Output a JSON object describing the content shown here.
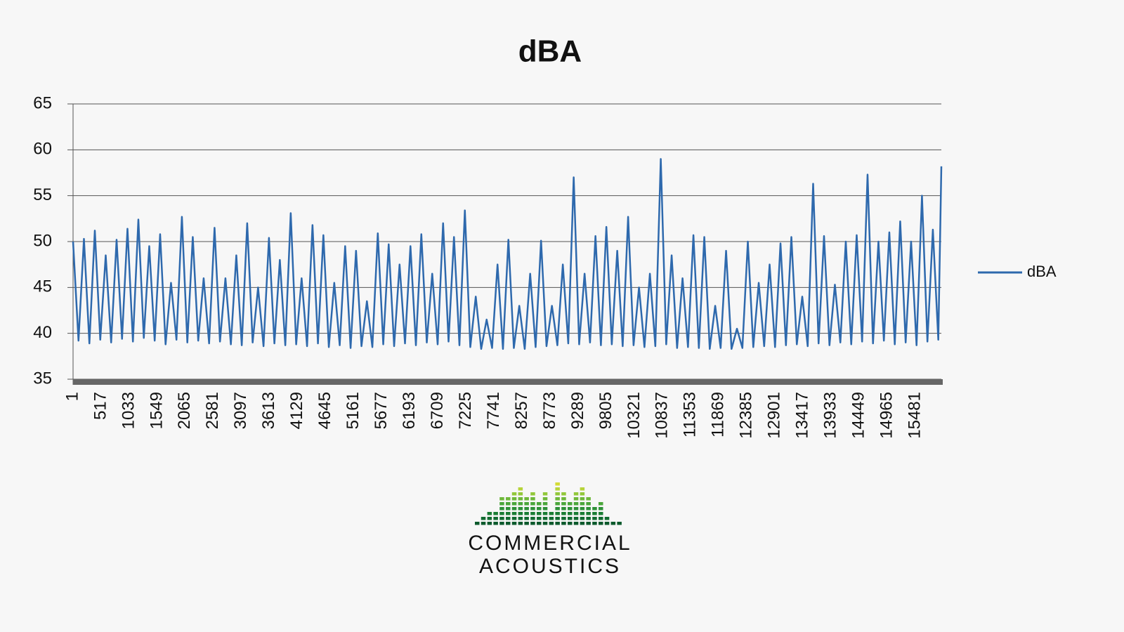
{
  "chart_data": {
    "type": "line",
    "title": "dBA",
    "x": [
      1,
      101,
      201,
      301,
      401,
      501,
      601,
      701,
      801,
      901,
      1001,
      1101,
      1201,
      1301,
      1401,
      1501,
      1601,
      1701,
      1801,
      1901,
      2001,
      2101,
      2201,
      2301,
      2401,
      2501,
      2601,
      2701,
      2801,
      2901,
      3001,
      3101,
      3201,
      3301,
      3401,
      3501,
      3601,
      3701,
      3801,
      3901,
      4001,
      4101,
      4201,
      4301,
      4401,
      4501,
      4601,
      4701,
      4801,
      4901,
      5001,
      5101,
      5201,
      5301,
      5401,
      5501,
      5601,
      5701,
      5801,
      5901,
      6001,
      6101,
      6201,
      6301,
      6401,
      6501,
      6601,
      6701,
      6801,
      6901,
      7001,
      7101,
      7201,
      7301,
      7401,
      7501,
      7601,
      7701,
      7801,
      7901,
      8001,
      8101,
      8201,
      8301,
      8401,
      8501,
      8601,
      8701,
      8801,
      8901,
      9001,
      9101,
      9201,
      9301,
      9401,
      9501,
      9601,
      9701,
      9801,
      9901,
      10001,
      10101,
      10201,
      10301,
      10401,
      10501,
      10601,
      10701,
      10801,
      10901,
      11001,
      11101,
      11201,
      11301,
      11401,
      11501,
      11601,
      11701,
      11801,
      11901,
      12001,
      12101,
      12201,
      12301,
      12401,
      12501,
      12601,
      12701,
      12801,
      12901,
      13001,
      13101,
      13201,
      13301,
      13401,
      13501,
      13601,
      13701,
      13801,
      13901,
      14001,
      14101,
      14201,
      14301,
      14401,
      14501,
      14601,
      14701,
      14801,
      14901,
      15001,
      15101,
      15201,
      15301,
      15401,
      15501,
      15601,
      15701,
      15801,
      15901,
      15957
    ],
    "series": [
      {
        "name": "dBA",
        "color": "#2e69ad",
        "values": [
          50,
          39.2,
          50.3,
          38.9,
          51.2,
          39.3,
          48.5,
          39,
          50.2,
          39.4,
          51.4,
          39.1,
          52.4,
          39.5,
          49.5,
          39.2,
          50.8,
          38.8,
          45.5,
          39.3,
          52.7,
          39,
          50.5,
          39.2,
          46,
          38.9,
          51.5,
          39.1,
          46,
          38.8,
          48.5,
          38.7,
          52,
          39,
          45,
          38.6,
          50.4,
          38.9,
          48,
          38.7,
          53.1,
          38.8,
          46,
          38.6,
          51.8,
          38.9,
          50.7,
          38.5,
          45.5,
          38.7,
          49.5,
          38.4,
          49,
          38.6,
          43.5,
          38.5,
          50.9,
          38.8,
          49.7,
          38.6,
          47.5,
          38.9,
          49.5,
          38.7,
          50.8,
          39,
          46.5,
          38.8,
          52,
          39.1,
          50.5,
          38.7,
          53.4,
          38.5,
          44,
          38.3,
          41.5,
          38.4,
          47.5,
          38.3,
          50.2,
          38.4,
          43,
          38.3,
          46.5,
          38.5,
          50.1,
          38.6,
          43,
          38.7,
          47.5,
          38.9,
          57,
          38.8,
          46.5,
          39,
          50.6,
          38.7,
          51.6,
          38.8,
          49,
          38.6,
          52.7,
          38.7,
          45,
          38.5,
          46.5,
          38.6,
          59,
          38.8,
          48.5,
          38.4,
          46,
          38.5,
          50.7,
          38.4,
          50.5,
          38.3,
          43,
          38.4,
          49,
          38.3,
          40.5,
          38.4,
          50,
          38.5,
          45.5,
          38.6,
          47.5,
          38.5,
          49.8,
          38.7,
          50.5,
          38.8,
          44,
          38.6,
          56.3,
          38.9,
          50.6,
          38.7,
          45.3,
          39,
          50,
          38.8,
          50.7,
          39.1,
          57.3,
          38.9,
          50,
          39.2,
          51,
          38.8,
          52.2,
          39,
          50,
          38.7,
          55,
          39.1,
          51.3,
          39.3,
          58.2
        ]
      }
    ],
    "xlim": [
      1,
      15957
    ],
    "xticks": [
      1,
      517,
      1033,
      1549,
      2065,
      2581,
      3097,
      3613,
      4129,
      4645,
      5161,
      5677,
      6193,
      6709,
      7225,
      7741,
      8257,
      8773,
      9289,
      9805,
      10321,
      10837,
      11353,
      11869,
      12385,
      12901,
      13417,
      13933,
      14449,
      14965,
      15481
    ],
    "ylim": [
      35,
      65
    ],
    "yticks": [
      35,
      40,
      45,
      50,
      55,
      60,
      65
    ],
    "grid": true,
    "legend": "right"
  },
  "logo": {
    "line1": "COMMERCIAL",
    "line2": "ACOUSTICS"
  }
}
